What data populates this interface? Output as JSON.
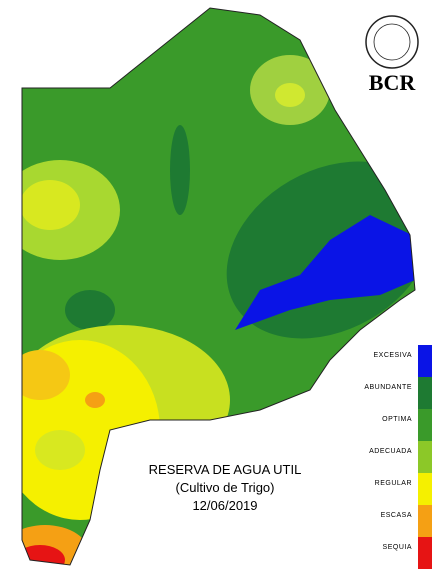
{
  "logo": {
    "text": "BCR"
  },
  "title": {
    "line1": "RESERVA DE AGUA UTIL",
    "line2": "(Cultivo de Trigo)",
    "date": "12/06/2019"
  },
  "legend": [
    {
      "label": "EXCESIVA",
      "color": "#0a14e6"
    },
    {
      "label": "ABUNDANTE",
      "color": "#1e7a32"
    },
    {
      "label": "OPTIMA",
      "color": "#3a9a2a"
    },
    {
      "label": "ADECUADA",
      "color": "#8cc828"
    },
    {
      "label": "REGULAR",
      "color": "#f5f000"
    },
    {
      "label": "ESCASA",
      "color": "#f5a014"
    },
    {
      "label": "SEQUIA",
      "color": "#e61414"
    }
  ]
}
